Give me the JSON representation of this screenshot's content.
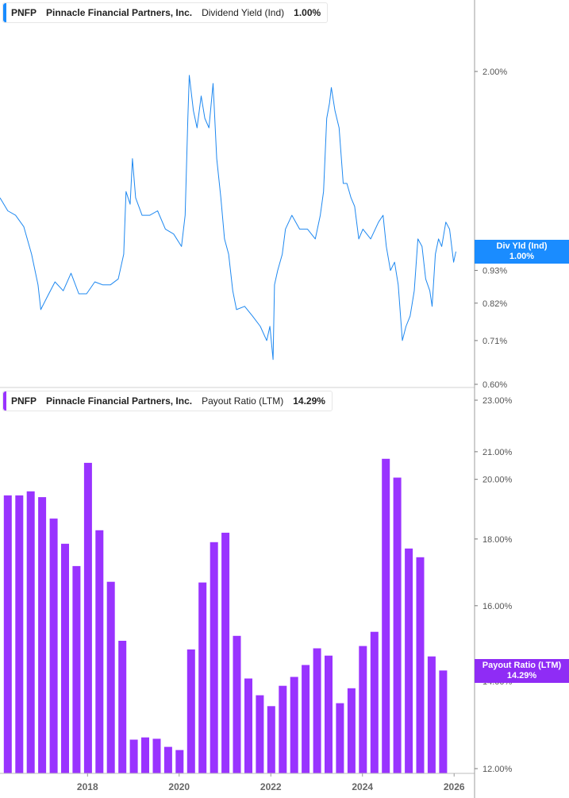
{
  "colors": {
    "line": "#1e88f0",
    "bars": "#9933ff",
    "badge_top": "#1a8cff",
    "badge_bottom": "#8f2cf5"
  },
  "chart_data": [
    {
      "type": "line",
      "ticker": "PNFP",
      "company": "Pinnacle Financial Partners, Inc.",
      "metric": "Dividend Yield (Ind)",
      "current_value": "1.00%",
      "badge_label": "Div Yld (Ind)",
      "badge_value": "1.00%",
      "yscale": "log",
      "ylim": [
        0.6,
        2.1
      ],
      "y_ticks": [
        {
          "v": 2.0,
          "label": "2.00%"
        },
        {
          "v": 1.0,
          "label": "1.00%"
        },
        {
          "v": 0.93,
          "label": "0.93%"
        },
        {
          "v": 0.82,
          "label": "0.82%"
        },
        {
          "v": 0.71,
          "label": "0.71%"
        },
        {
          "v": 0.6,
          "label": "0.60%"
        }
      ],
      "x": [
        2016.09,
        2016.26,
        2016.43,
        2016.61,
        2016.78,
        2016.92,
        2016.98,
        2017.12,
        2017.29,
        2017.47,
        2017.64,
        2017.81,
        2017.98,
        2018.16,
        2018.33,
        2018.5,
        2018.67,
        2018.79,
        2018.84,
        2018.93,
        2018.98,
        2019.05,
        2019.19,
        2019.36,
        2019.53,
        2019.7,
        2019.88,
        2020.05,
        2020.13,
        2020.19,
        2020.22,
        2020.31,
        2020.39,
        2020.48,
        2020.56,
        2020.65,
        2020.74,
        2020.82,
        2020.91,
        2020.99,
        2021.08,
        2021.17,
        2021.25,
        2021.43,
        2021.6,
        2021.77,
        2021.91,
        2021.98,
        2022.05,
        2022.08,
        2022.15,
        2022.25,
        2022.32,
        2022.46,
        2022.63,
        2022.8,
        2022.97,
        2023.08,
        2023.15,
        2023.22,
        2023.28,
        2023.32,
        2023.4,
        2023.49,
        2023.58,
        2023.66,
        2023.75,
        2023.83,
        2023.92,
        2024.01,
        2024.18,
        2024.35,
        2024.45,
        2024.52,
        2024.61,
        2024.7,
        2024.78,
        2024.87,
        2024.95,
        2025.04,
        2025.13,
        2025.21,
        2025.3,
        2025.38,
        2025.47,
        2025.52,
        2025.59,
        2025.66,
        2025.73,
        2025.82,
        2025.9,
        2025.99,
        2026.04
      ],
      "y": [
        1.23,
        1.17,
        1.15,
        1.1,
        0.99,
        0.88,
        0.8,
        0.84,
        0.89,
        0.86,
        0.92,
        0.85,
        0.85,
        0.89,
        0.88,
        0.88,
        0.9,
        0.99,
        1.26,
        1.2,
        1.43,
        1.23,
        1.15,
        1.15,
        1.17,
        1.09,
        1.07,
        1.02,
        1.15,
        1.67,
        1.97,
        1.72,
        1.61,
        1.82,
        1.67,
        1.61,
        1.91,
        1.43,
        1.23,
        1.05,
        0.99,
        0.86,
        0.8,
        0.81,
        0.78,
        0.75,
        0.71,
        0.75,
        0.66,
        0.88,
        0.93,
        0.99,
        1.09,
        1.15,
        1.09,
        1.09,
        1.05,
        1.15,
        1.26,
        1.67,
        1.77,
        1.88,
        1.72,
        1.61,
        1.3,
        1.3,
        1.23,
        1.19,
        1.05,
        1.09,
        1.05,
        1.12,
        1.15,
        1.02,
        0.93,
        0.96,
        0.88,
        0.71,
        0.75,
        0.78,
        0.86,
        1.05,
        1.02,
        0.9,
        0.86,
        0.81,
        0.99,
        1.05,
        1.02,
        1.12,
        1.09,
        0.96,
        1.0
      ]
    },
    {
      "type": "bar",
      "ticker": "PNFP",
      "company": "Pinnacle Financial Partners, Inc.",
      "metric": "Payout Ratio (LTM)",
      "current_value": "14.29%",
      "badge_label": "Payout Ratio (LTM)",
      "badge_value": "14.29%",
      "yscale": "log",
      "ylim": [
        12.0,
        23.0
      ],
      "y_ticks": [
        {
          "v": 23,
          "label": "23.00%"
        },
        {
          "v": 21,
          "label": "21.00%"
        },
        {
          "v": 20,
          "label": "20.00%"
        },
        {
          "v": 18,
          "label": "18.00%"
        },
        {
          "v": 16,
          "label": "16.00%"
        },
        {
          "v": 14,
          "label": "14.00%"
        },
        {
          "v": 12,
          "label": "12.00%"
        }
      ],
      "x": [
        2016.26,
        2016.51,
        2016.76,
        2017.01,
        2017.26,
        2017.51,
        2017.76,
        2018.01,
        2018.26,
        2018.51,
        2018.76,
        2019.01,
        2019.26,
        2019.51,
        2019.76,
        2020.01,
        2020.26,
        2020.51,
        2020.76,
        2021.01,
        2021.26,
        2021.51,
        2021.76,
        2022.01,
        2022.26,
        2022.51,
        2022.76,
        2023.01,
        2023.26,
        2023.51,
        2023.76,
        2024.01,
        2024.26,
        2024.51,
        2024.76,
        2025.01,
        2025.26,
        2025.51,
        2025.76
      ],
      "values": [
        19.44,
        19.44,
        19.58,
        19.38,
        18.66,
        17.85,
        17.16,
        20.59,
        18.28,
        16.69,
        15.04,
        12.63,
        12.68,
        12.65,
        12.47,
        12.4,
        14.81,
        16.67,
        17.9,
        18.2,
        15.17,
        14.07,
        13.66,
        13.4,
        13.89,
        14.11,
        14.41,
        14.84,
        14.65,
        13.47,
        13.83,
        14.9,
        15.28,
        20.74,
        20.06,
        17.7,
        17.43,
        14.63,
        14.27
      ]
    }
  ],
  "x_axis": {
    "xlim": [
      2016.09,
      2026.1
    ],
    "ticks": [
      {
        "v": 2018,
        "label": "2018"
      },
      {
        "v": 2020,
        "label": "2020"
      },
      {
        "v": 2022,
        "label": "2022"
      },
      {
        "v": 2024,
        "label": "2024"
      },
      {
        "v": 2026,
        "label": "2026"
      }
    ]
  }
}
